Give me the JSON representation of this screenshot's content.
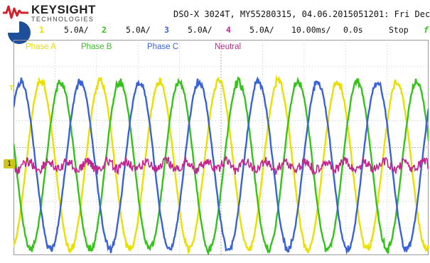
{
  "brand": {
    "name": "KEYSIGHT",
    "sub": "TECHNOLOGIES",
    "accent": "#d4202b"
  },
  "header": {
    "meta": "DSO-X 3024T, MY55280315, 04.06.2015051201: Fri Dec"
  },
  "status": {
    "channels": [
      {
        "num": "1",
        "scale": "5.0A/",
        "color": "#e8e000"
      },
      {
        "num": "2",
        "scale": "5.0A/",
        "color": "#35c21b"
      },
      {
        "num": "3",
        "scale": "5.0A/",
        "color": "#3a62d8"
      },
      {
        "num": "4",
        "scale": "5.0A/",
        "color": "#c4258f"
      }
    ],
    "timebase": "10.00ms/",
    "delay": "0.0s",
    "run_state": "Stop",
    "trigger_glyph": "f"
  },
  "labels": [
    {
      "text": "Phase A",
      "color": "#e8e000"
    },
    {
      "text": "Phase B",
      "color": "#35c21b"
    },
    {
      "text": "Phase C",
      "color": "#3a62d8"
    },
    {
      "text": "Neutral",
      "color": "#c4258f"
    }
  ],
  "markers": {
    "trigger_level": "T",
    "ground_channel": "1"
  },
  "icons": {
    "logo": "keysight-wave-icon",
    "channel": "channel-select-icon"
  }
}
